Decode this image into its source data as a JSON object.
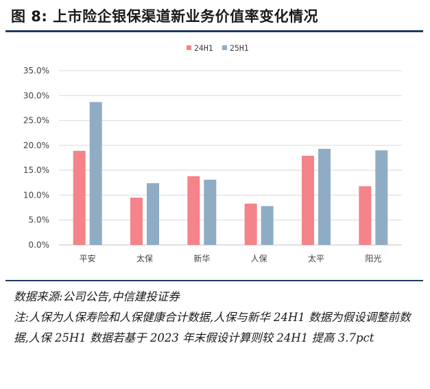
{
  "figure": {
    "title": "图 8:  上市险企银保渠道新业务价值率变化情况"
  },
  "chart_data": {
    "type": "bar",
    "categories": [
      "平安",
      "太保",
      "新华",
      "人保",
      "太平",
      "阳光"
    ],
    "series": [
      {
        "name": "24H1",
        "values": [
          18.9,
          9.5,
          13.8,
          8.3,
          17.9,
          11.8
        ]
      },
      {
        "name": "25H1",
        "values": [
          28.7,
          12.4,
          13.1,
          7.8,
          19.3,
          19.0
        ]
      }
    ],
    "ylim": [
      0,
      35
    ],
    "yticks": [
      0,
      5,
      10,
      15,
      20,
      25,
      30,
      35
    ],
    "ytick_labels": [
      "0.0%",
      "5.0%",
      "10.0%",
      "15.0%",
      "20.0%",
      "25.0%",
      "30.0%",
      "35.0%"
    ],
    "grid": true,
    "legend_position": "top-center",
    "colors": {
      "24H1": "#f4838a",
      "25H1": "#8facc5"
    }
  },
  "notes": {
    "source": "数据来源:公司公告,中信建投证券",
    "note": "注:人保为人保寿险和人保健康合计数据,人保与新华 24H1 数据为假设调整前数据,人保 25H1 数据若基于 2023 年末假设计算则较 24H1 提高 3.7pct"
  }
}
